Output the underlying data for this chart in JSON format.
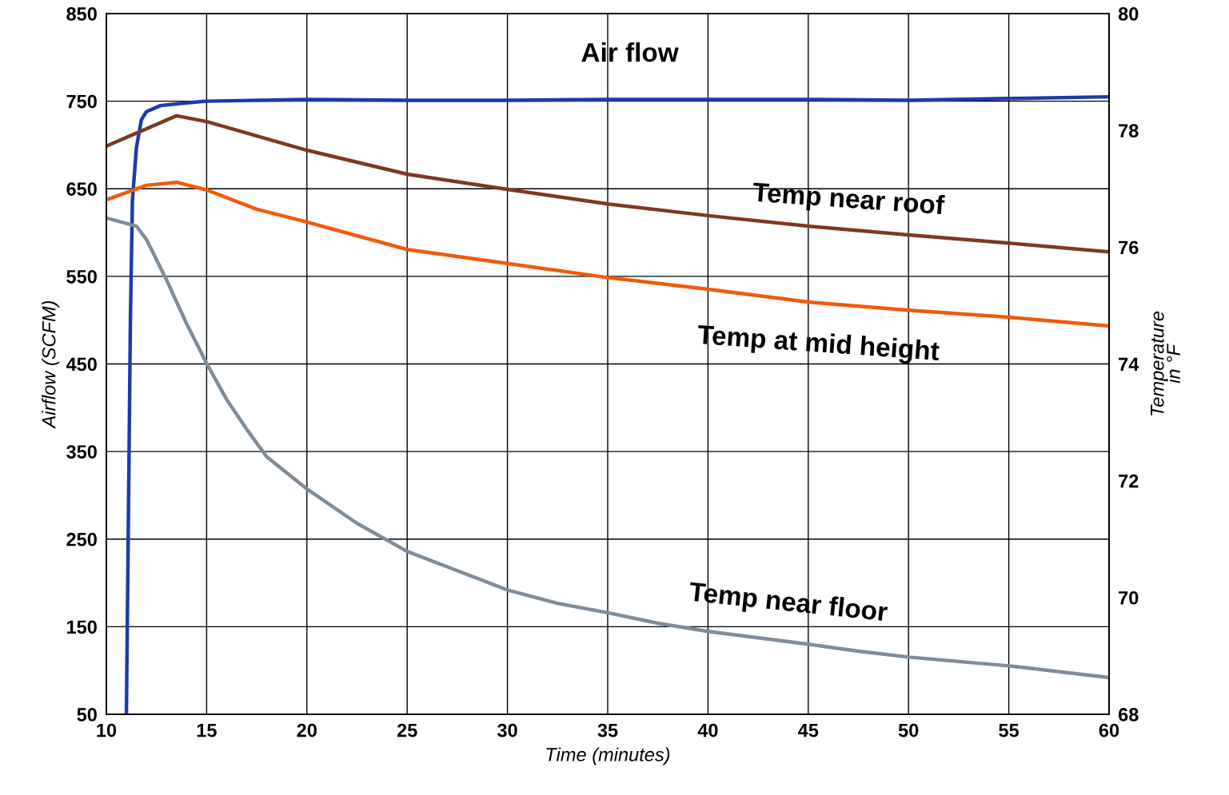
{
  "chart_data": {
    "type": "line",
    "xlabel": "Time (minutes)",
    "ylabel": "Airflow (SCFM)",
    "y2label": "Temperature\nin °F",
    "xlim": [
      10,
      60
    ],
    "xticks": [
      10,
      15,
      20,
      25,
      30,
      35,
      40,
      45,
      50,
      55,
      60
    ],
    "ylim": [
      50,
      850
    ],
    "yticks": [
      50,
      150,
      250,
      350,
      450,
      550,
      650,
      750,
      850
    ],
    "y2lim": [
      68,
      80
    ],
    "y2ticks": [
      68,
      70,
      72,
      74,
      76,
      78,
      80
    ],
    "grid": true,
    "legend": false,
    "marker": "none",
    "line_style": "solid",
    "series": [
      {
        "name": "Air flow",
        "color": "#1a3caa",
        "x": [
          11.0,
          11.2,
          11.3,
          11.5,
          11.75,
          12,
          12.7,
          14,
          15,
          20,
          25,
          30,
          35,
          40,
          45,
          50,
          55,
          60
        ],
        "values": [
          50,
          501,
          637,
          697,
          729,
          738,
          745,
          748,
          750,
          752,
          751,
          751,
          752,
          752,
          752,
          751,
          753,
          755
        ]
      },
      {
        "name": "Temp near roof",
        "color": "#7b3a1e",
        "axis": "y2",
        "x": [
          10,
          13.5,
          15,
          20,
          25,
          30,
          35,
          40,
          45,
          50,
          55,
          60
        ],
        "values": [
          77.73,
          78.25,
          78.15,
          77.66,
          77.25,
          76.99,
          76.74,
          76.54,
          76.36,
          76.21,
          76.07,
          75.92
        ]
      },
      {
        "name": "Temp at mid height",
        "color": "#f05a0a",
        "axis": "y2",
        "x": [
          10,
          12,
          13.5,
          15,
          17.5,
          20,
          25,
          30,
          35,
          40,
          45,
          50,
          55,
          60
        ],
        "values": [
          76.81,
          77.06,
          77.11,
          76.98,
          76.65,
          76.43,
          75.96,
          75.72,
          75.48,
          75.28,
          75.06,
          74.92,
          74.8,
          74.65
        ]
      },
      {
        "name": "Temp near floor",
        "color": "#7f8c99",
        "axis": "y2",
        "x": [
          10,
          11.5,
          12,
          13,
          14,
          15,
          16,
          17,
          18,
          20,
          22.5,
          25,
          27.5,
          30,
          32.5,
          35,
          37.5,
          40,
          42.5,
          45,
          47.5,
          50,
          55,
          60
        ],
        "values": [
          76.5,
          76.36,
          76.13,
          75.44,
          74.69,
          74.01,
          73.39,
          72.88,
          72.41,
          71.86,
          71.27,
          70.79,
          70.46,
          70.13,
          69.9,
          69.74,
          69.56,
          69.42,
          69.31,
          69.2,
          69.08,
          68.98,
          68.83,
          68.63
        ]
      }
    ]
  }
}
